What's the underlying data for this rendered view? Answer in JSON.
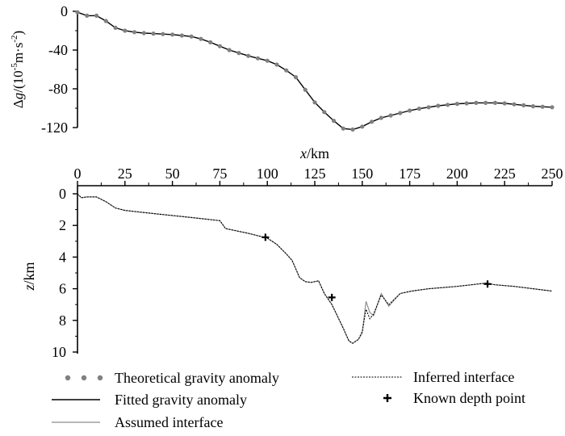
{
  "chart_data": [
    {
      "type": "line",
      "panel": "top",
      "ylabel_parts": [
        "Δ",
        "g",
        "/(10",
        "-5",
        "m·s",
        "-2",
        ")"
      ],
      "ylim": [
        -120,
        0
      ],
      "yticks": [
        0,
        -40,
        -80,
        -120
      ],
      "xlim": [
        0,
        250
      ],
      "series": [
        {
          "name": "Theoretical gravity anomaly",
          "style": "dots",
          "x": [
            0,
            5,
            10,
            15,
            20,
            25,
            30,
            35,
            40,
            45,
            50,
            55,
            60,
            65,
            70,
            75,
            80,
            85,
            90,
            95,
            100,
            105,
            110,
            115,
            120,
            125,
            130,
            135,
            140,
            145,
            150,
            155,
            160,
            165,
            170,
            175,
            180,
            185,
            190,
            195,
            200,
            205,
            210,
            215,
            220,
            225,
            230,
            235,
            240,
            245,
            250
          ],
          "y": [
            -1,
            -4.5,
            -4.5,
            -10,
            -17,
            -20,
            -21.5,
            -22.5,
            -23,
            -23.5,
            -24,
            -25,
            -26,
            -28.5,
            -32,
            -36,
            -40,
            -43,
            -46,
            -48.5,
            -51,
            -55,
            -61,
            -68,
            -81,
            -94,
            -104,
            -113,
            -121,
            -122,
            -119,
            -114,
            -110,
            -107.5,
            -105,
            -102.5,
            -100.5,
            -99,
            -97.5,
            -96.5,
            -95.5,
            -95,
            -94.5,
            -94.5,
            -94.5,
            -95,
            -96,
            -97,
            -98,
            -98.5,
            -99
          ]
        },
        {
          "name": "Fitted gravity anomaly",
          "style": "solid",
          "x": [
            0,
            5,
            10,
            15,
            20,
            25,
            30,
            35,
            40,
            45,
            50,
            55,
            60,
            65,
            70,
            75,
            80,
            85,
            90,
            95,
            100,
            105,
            110,
            115,
            120,
            125,
            130,
            135,
            140,
            145,
            150,
            155,
            160,
            165,
            170,
            175,
            180,
            185,
            190,
            195,
            200,
            205,
            210,
            215,
            220,
            225,
            230,
            235,
            240,
            245,
            250
          ],
          "y": [
            -1,
            -4.5,
            -4.5,
            -10,
            -17,
            -20,
            -21.5,
            -22.5,
            -23,
            -23.5,
            -24,
            -25,
            -26,
            -28.5,
            -32,
            -36,
            -40,
            -43,
            -46,
            -48.5,
            -51,
            -55,
            -61,
            -68,
            -81,
            -94,
            -104,
            -113,
            -121,
            -122,
            -119,
            -114,
            -110,
            -107.5,
            -105,
            -102.5,
            -100.5,
            -99,
            -97.5,
            -96.5,
            -95.5,
            -95,
            -94.5,
            -94.5,
            -94.5,
            -95,
            -96,
            -97,
            -98,
            -98.5,
            -99
          ]
        }
      ]
    },
    {
      "type": "line",
      "panel": "bottom",
      "xlabel_italic": "x",
      "xlabel_rest": "/km",
      "xticks": [
        0,
        25,
        50,
        75,
        100,
        125,
        150,
        175,
        200,
        225,
        250
      ],
      "xlim": [
        0,
        250
      ],
      "ylabel_italic": "z",
      "ylabel_rest": "/km",
      "ylim": [
        0,
        10
      ],
      "yticks": [
        0,
        2,
        4,
        6,
        8,
        10
      ],
      "series": [
        {
          "name": "Assumed interface",
          "style": "thin-gray",
          "x": [
            0,
            2,
            5,
            10,
            15,
            20,
            25,
            40,
            60,
            75,
            78,
            90,
            100,
            105,
            110,
            113,
            117,
            120,
            123,
            127,
            130,
            134,
            140,
            143,
            145,
            148,
            150,
            152,
            154,
            156,
            160,
            164,
            170,
            176,
            185,
            200,
            215,
            220,
            230,
            240,
            250
          ],
          "y": [
            0,
            0.25,
            0.2,
            0.2,
            0.5,
            0.9,
            1.05,
            1.25,
            1.5,
            1.7,
            2.2,
            2.5,
            2.8,
            3.2,
            3.8,
            4.2,
            5.3,
            5.55,
            5.6,
            5.5,
            6.3,
            7.0,
            8.5,
            9.3,
            9.45,
            9.2,
            8.8,
            6.8,
            7.5,
            7.7,
            6.3,
            7.1,
            6.3,
            6.15,
            6.0,
            5.85,
            5.65,
            5.75,
            5.85,
            6.0,
            6.15
          ]
        },
        {
          "name": "Inferred interface",
          "style": "dotted",
          "x": [
            0,
            2,
            5,
            10,
            15,
            20,
            25,
            40,
            60,
            75,
            78,
            90,
            100,
            105,
            110,
            113,
            117,
            120,
            123,
            127,
            130,
            134,
            140,
            143,
            145,
            148,
            150,
            152,
            154,
            156,
            160,
            164,
            170,
            176,
            185,
            200,
            215,
            220,
            230,
            240,
            250
          ],
          "y": [
            0,
            0.25,
            0.2,
            0.2,
            0.5,
            0.9,
            1.05,
            1.25,
            1.5,
            1.7,
            2.2,
            2.5,
            2.8,
            3.2,
            3.8,
            4.2,
            5.3,
            5.55,
            5.6,
            5.5,
            6.3,
            7.0,
            8.5,
            9.3,
            9.45,
            9.2,
            8.7,
            7.3,
            7.9,
            7.6,
            6.4,
            7.0,
            6.3,
            6.15,
            6.0,
            5.85,
            5.65,
            5.75,
            5.85,
            6.0,
            6.15
          ]
        },
        {
          "name": "Known depth point",
          "style": "plus",
          "x": [
            99,
            134,
            216
          ],
          "y": [
            2.75,
            6.55,
            5.7
          ]
        }
      ]
    }
  ],
  "legend": {
    "theoretical": "Theoretical gravity anomaly",
    "fitted": "Fitted gravity anomaly",
    "assumed": "Assumed interface",
    "inferred": "Inferred interface",
    "known": "Known depth point"
  },
  "colors": {
    "dots": "#808080",
    "assumed": "#8c8c8c",
    "axis": "#000000"
  }
}
